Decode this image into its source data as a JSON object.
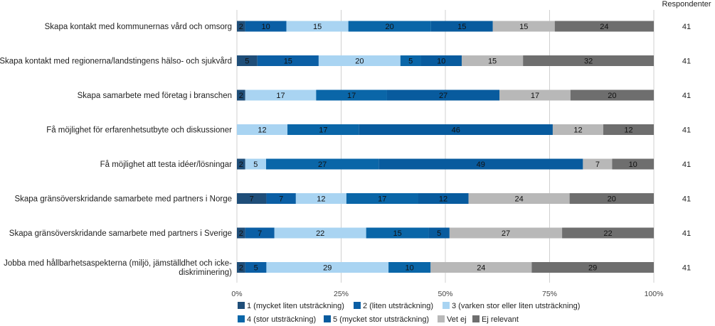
{
  "chart_data": {
    "type": "bar",
    "orientation": "horizontal",
    "stacked": true,
    "percent_scale": true,
    "categories": [
      [
        "Skapa kontakt med kommunernas vård och omsorg"
      ],
      [
        "Skapa kontakt med regionerna/landstingens hälso- och sjukvård"
      ],
      [
        "Skapa samarbete med företag i branschen"
      ],
      [
        "Få möjlighet för erfarenhetsutbyte och diskussioner"
      ],
      [
        "Få möjlighet att testa idéer/lösningar"
      ],
      [
        "Skapa gränsöverskridande samarbete med partners i Norge"
      ],
      [
        "Skapa gränsöverskridande samarbete med partners i Sverige"
      ],
      [
        "Jobba med hållbarhetsaspekterna (miljö, jämställdhet och icke-",
        "diskriminering)"
      ]
    ],
    "series": [
      {
        "name": "1 (mycket liten utsträckning)",
        "color": "#1f4e79",
        "values": [
          2,
          5,
          2,
          0,
          2,
          7,
          2,
          2
        ]
      },
      {
        "name": "2 (liten utsträckning)",
        "color": "#0b5fa5",
        "values": [
          10,
          15,
          0,
          0,
          0,
          7,
          7,
          5
        ]
      },
      {
        "name": "3 (varken stor eller liten utsträckning)",
        "color": "#a9d4f2",
        "values": [
          15,
          20,
          17,
          12,
          5,
          12,
          22,
          29
        ]
      },
      {
        "name": "4 (stor utsträckning)",
        "color": "#0a66a8",
        "values": [
          20,
          5,
          17,
          17,
          27,
          17,
          15,
          10
        ]
      },
      {
        "name": "5 (mycket stor utsträckning)",
        "color": "#085b9e",
        "values": [
          15,
          10,
          27,
          46,
          49,
          12,
          5,
          0
        ]
      },
      {
        "name": "Vet ej",
        "color": "#b8b8b8",
        "values": [
          15,
          15,
          17,
          12,
          7,
          24,
          27,
          24
        ]
      },
      {
        "name": "Ej relevant",
        "color": "#6e6e6e",
        "values": [
          24,
          32,
          20,
          12,
          10,
          20,
          22,
          29
        ]
      }
    ],
    "respondents_header": "Respondenter",
    "respondents": [
      "41",
      "41",
      "41",
      "41",
      "41",
      "41",
      "41",
      "41"
    ],
    "xticks": [
      "0%",
      "25%",
      "50%",
      "75%",
      "100%"
    ],
    "xlim": [
      0,
      100
    ]
  }
}
